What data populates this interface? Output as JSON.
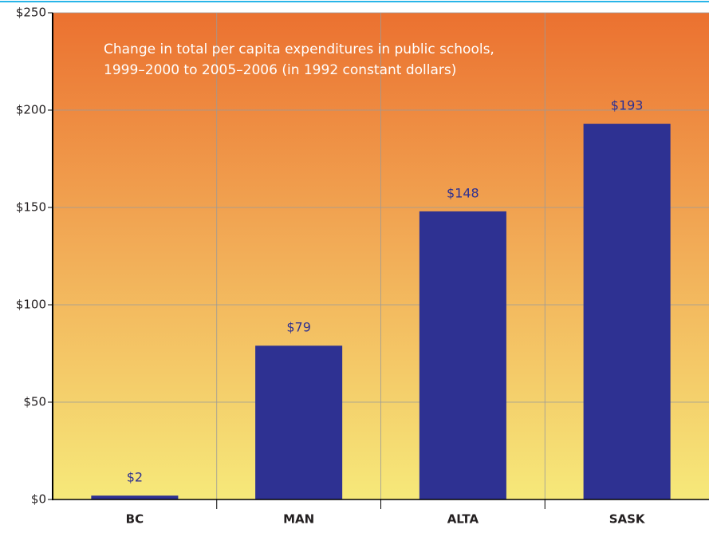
{
  "chart_data": {
    "type": "bar",
    "title": [
      "Change in total per capita expenditures in public schools,",
      "1999–2000 to 2005–2006 (in 1992 constant dollars)"
    ],
    "categories": [
      "BC",
      "MAN",
      "ALTA",
      "SASK"
    ],
    "values": [
      2,
      79,
      148,
      193
    ],
    "value_labels": [
      "$2",
      "$79",
      "$148",
      "$193"
    ],
    "color": "#2e3192",
    "ylim": [
      0,
      250
    ],
    "yticks": [
      {
        "value": 0,
        "label": "$0"
      },
      {
        "value": 50,
        "label": "$50"
      },
      {
        "value": 100,
        "label": "$100"
      },
      {
        "value": 150,
        "label": "$150"
      },
      {
        "value": 200,
        "label": "$200"
      },
      {
        "value": 250,
        "label": "$250"
      }
    ],
    "grid": true
  }
}
